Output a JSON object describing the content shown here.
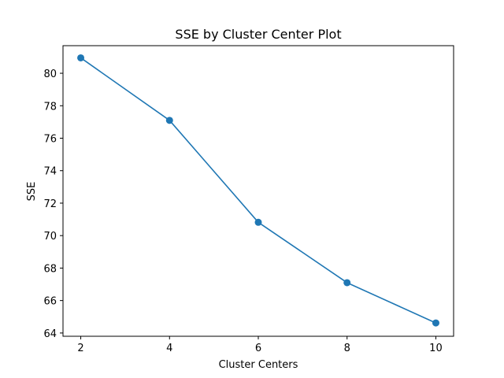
{
  "chart_data": {
    "type": "line",
    "title": "SSE by Cluster Center Plot",
    "xlabel": "Cluster Centers",
    "ylabel": "SSE",
    "x": [
      2,
      4,
      6,
      8,
      10
    ],
    "series": [
      {
        "values": [
          80.95,
          77.1,
          70.82,
          67.1,
          64.62
        ],
        "color": "#1f77b4",
        "marker": "circle"
      }
    ],
    "xticks": [
      2,
      4,
      6,
      8,
      10
    ],
    "yticks": [
      64,
      66,
      68,
      70,
      72,
      74,
      76,
      78,
      80
    ],
    "xlim": [
      1.6,
      10.4
    ],
    "ylim": [
      63.8,
      81.7
    ],
    "grid": false,
    "legend": "none"
  }
}
